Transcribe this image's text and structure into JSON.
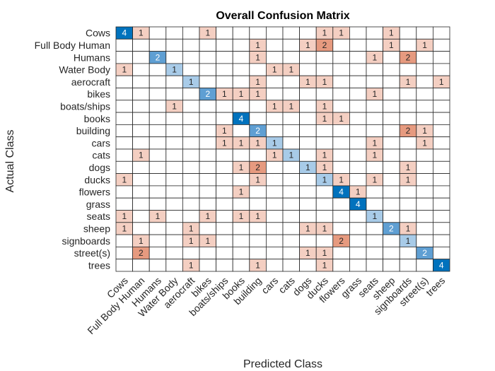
{
  "chart_data": {
    "type": "heatmap",
    "title": "Overall Confusion Matrix",
    "xlabel": "Predicted Class",
    "ylabel": "Actual Class",
    "classes": [
      "Cows",
      "Full Body Human",
      "Humans",
      "Water Body",
      "aerocraft",
      "bikes",
      "boats/ships",
      "books",
      "building",
      "cars",
      "cats",
      "dogs",
      "ducks",
      "flowers",
      "grass",
      "seats",
      "sheep",
      "signboards",
      "street(s)",
      "trees"
    ],
    "matrix": [
      [
        4,
        1,
        0,
        0,
        0,
        1,
        0,
        0,
        0,
        0,
        0,
        0,
        1,
        1,
        0,
        0,
        1,
        0,
        0,
        0
      ],
      [
        0,
        0,
        0,
        0,
        0,
        0,
        0,
        0,
        1,
        0,
        0,
        1,
        2,
        0,
        0,
        0,
        1,
        0,
        1,
        0
      ],
      [
        0,
        0,
        2,
        0,
        0,
        0,
        0,
        0,
        1,
        0,
        0,
        0,
        0,
        0,
        0,
        1,
        0,
        2,
        0,
        0
      ],
      [
        1,
        0,
        0,
        1,
        0,
        0,
        0,
        0,
        0,
        1,
        1,
        0,
        0,
        0,
        0,
        0,
        0,
        0,
        0,
        0
      ],
      [
        0,
        0,
        0,
        0,
        1,
        0,
        0,
        0,
        1,
        0,
        0,
        1,
        1,
        0,
        0,
        0,
        0,
        1,
        0,
        1
      ],
      [
        0,
        0,
        0,
        0,
        0,
        2,
        1,
        1,
        1,
        0,
        0,
        0,
        0,
        0,
        0,
        1,
        0,
        0,
        0,
        0
      ],
      [
        0,
        0,
        0,
        1,
        0,
        0,
        0,
        0,
        0,
        1,
        1,
        0,
        1,
        0,
        0,
        0,
        0,
        0,
        0,
        0
      ],
      [
        0,
        0,
        0,
        0,
        0,
        0,
        0,
        4,
        0,
        0,
        0,
        0,
        1,
        1,
        0,
        0,
        0,
        0,
        0,
        0
      ],
      [
        0,
        0,
        0,
        0,
        0,
        0,
        1,
        0,
        2,
        0,
        0,
        0,
        0,
        0,
        0,
        0,
        0,
        2,
        1,
        0
      ],
      [
        0,
        0,
        0,
        0,
        0,
        0,
        1,
        1,
        1,
        1,
        0,
        0,
        0,
        0,
        0,
        1,
        0,
        0,
        1,
        0
      ],
      [
        0,
        1,
        0,
        0,
        0,
        0,
        0,
        0,
        0,
        1,
        1,
        0,
        1,
        0,
        0,
        1,
        0,
        0,
        0,
        0
      ],
      [
        0,
        0,
        0,
        0,
        0,
        0,
        0,
        1,
        2,
        0,
        0,
        1,
        1,
        0,
        0,
        0,
        0,
        1,
        0,
        0
      ],
      [
        1,
        0,
        0,
        0,
        0,
        0,
        0,
        0,
        1,
        0,
        0,
        0,
        1,
        1,
        0,
        1,
        0,
        1,
        0,
        0
      ],
      [
        0,
        0,
        0,
        0,
        0,
        0,
        0,
        1,
        0,
        0,
        0,
        0,
        0,
        4,
        1,
        0,
        0,
        0,
        0,
        0
      ],
      [
        0,
        0,
        0,
        0,
        0,
        0,
        0,
        0,
        0,
        0,
        0,
        0,
        0,
        0,
        4,
        0,
        0,
        0,
        0,
        0
      ],
      [
        1,
        0,
        1,
        0,
        0,
        1,
        0,
        1,
        1,
        0,
        0,
        0,
        0,
        0,
        0,
        1,
        0,
        0,
        0,
        0
      ],
      [
        1,
        0,
        0,
        0,
        1,
        0,
        0,
        0,
        0,
        0,
        0,
        1,
        1,
        0,
        0,
        0,
        2,
        1,
        0,
        0
      ],
      [
        0,
        1,
        0,
        0,
        1,
        1,
        0,
        0,
        0,
        0,
        0,
        0,
        0,
        2,
        0,
        0,
        0,
        1,
        0,
        0
      ],
      [
        0,
        2,
        0,
        0,
        0,
        0,
        0,
        0,
        0,
        0,
        0,
        1,
        1,
        0,
        0,
        0,
        0,
        0,
        2,
        0
      ],
      [
        0,
        0,
        0,
        0,
        1,
        0,
        0,
        0,
        1,
        0,
        0,
        0,
        1,
        0,
        0,
        0,
        0,
        0,
        0,
        4
      ]
    ],
    "colors": {
      "diagonal_high": "#0072bd",
      "diagonal_mid": "#5f9fd3",
      "diagonal_low": "#a8cbe8",
      "offdiag_low": "#f4cfc2",
      "offdiag_high": "#e69a7f",
      "grid": "#262626",
      "text_dark": "#262626",
      "text_light": "#ffffff"
    }
  }
}
